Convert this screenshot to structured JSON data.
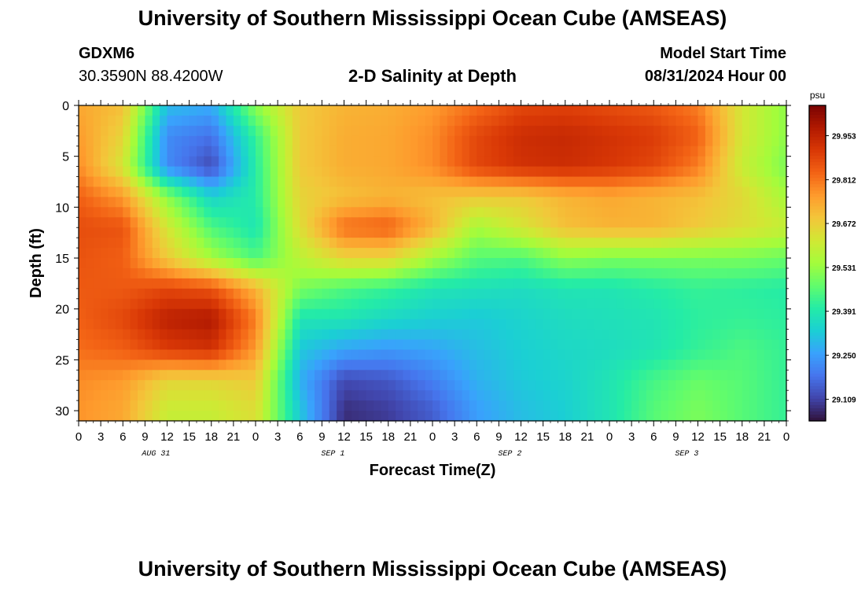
{
  "header": {
    "title": "University of Southern Mississippi Ocean Cube (AMSEAS)",
    "station_id": "GDXM6",
    "station_coords": "30.3590N  88.4200W",
    "subtitle": "2-D Salinity at Depth",
    "model_start_label": "Model Start Time",
    "model_start_value": "08/31/2024 Hour 00"
  },
  "footer": {
    "title": "University of Southern Mississippi Ocean Cube (AMSEAS)"
  },
  "chart_data": {
    "type": "heatmap",
    "title": "2-D Salinity at Depth",
    "xlabel": "Forecast Time(Z)",
    "ylabel": "Depth (ft)",
    "x_ticks": [
      "0",
      "3",
      "6",
      "9",
      "12",
      "15",
      "18",
      "21",
      "0",
      "3",
      "6",
      "9",
      "12",
      "15",
      "18",
      "21",
      "0",
      "3",
      "6",
      "9",
      "12",
      "15",
      "18",
      "21",
      "0",
      "3",
      "6",
      "9",
      "12",
      "15",
      "18",
      "21",
      "0"
    ],
    "date_labels": [
      "AUG 31",
      "SEP 1",
      "SEP 2",
      "SEP 3"
    ],
    "y_ticks": [
      0,
      5,
      10,
      15,
      20,
      25,
      30
    ],
    "y_range": [
      0,
      31
    ],
    "x_range_hours": [
      0,
      96
    ],
    "colorbar": {
      "unit": "psu",
      "ticks": [
        29.953,
        29.812,
        29.672,
        29.531,
        29.391,
        29.25,
        29.109
      ],
      "range": [
        29.04,
        30.05
      ],
      "colors": [
        "#30123b",
        "#4145ab",
        "#4675ed",
        "#39a2fc",
        "#1bcfd4",
        "#24eca6",
        "#61fc6c",
        "#a4fc3b",
        "#d1e834",
        "#f3c63a",
        "#fe9b2d",
        "#f36315",
        "#d93806",
        "#b11901",
        "#7a0402"
      ]
    },
    "depths_ft": [
      0,
      3,
      6,
      9,
      12,
      15,
      18,
      21,
      24,
      27,
      30
    ],
    "hours": [
      0,
      6,
      12,
      18,
      24,
      30,
      36,
      42,
      48,
      54,
      60,
      66,
      72,
      78,
      84,
      90,
      96
    ],
    "salinity_psu": [
      [
        29.74,
        29.7,
        29.3,
        29.27,
        29.52,
        29.68,
        29.72,
        29.73,
        29.76,
        29.82,
        29.88,
        29.89,
        29.87,
        29.85,
        29.8,
        29.62,
        29.52
      ],
      [
        29.76,
        29.66,
        29.22,
        29.18,
        29.42,
        29.68,
        29.73,
        29.74,
        29.78,
        29.88,
        29.93,
        29.94,
        29.92,
        29.9,
        29.84,
        29.62,
        29.52
      ],
      [
        29.78,
        29.62,
        29.22,
        29.12,
        29.4,
        29.68,
        29.73,
        29.74,
        29.78,
        29.88,
        29.92,
        29.93,
        29.91,
        29.88,
        29.8,
        29.6,
        29.5
      ],
      [
        29.84,
        29.76,
        29.52,
        29.34,
        29.4,
        29.66,
        29.7,
        29.72,
        29.7,
        29.68,
        29.68,
        29.72,
        29.74,
        29.72,
        29.7,
        29.65,
        29.55
      ],
      [
        29.87,
        29.86,
        29.62,
        29.45,
        29.38,
        29.64,
        29.82,
        29.84,
        29.72,
        29.55,
        29.62,
        29.7,
        29.72,
        29.72,
        29.68,
        29.64,
        29.6
      ],
      [
        29.86,
        29.84,
        29.68,
        29.55,
        29.45,
        29.58,
        29.66,
        29.66,
        29.55,
        29.46,
        29.45,
        29.52,
        29.5,
        29.5,
        29.5,
        29.5,
        29.48
      ],
      [
        29.85,
        29.85,
        29.88,
        29.86,
        29.72,
        29.5,
        29.45,
        29.42,
        29.38,
        29.37,
        29.36,
        29.38,
        29.38,
        29.4,
        29.42,
        29.41,
        29.4
      ],
      [
        29.84,
        29.88,
        29.96,
        29.98,
        29.8,
        29.38,
        29.38,
        29.35,
        29.33,
        29.32,
        29.34,
        29.36,
        29.37,
        29.38,
        29.41,
        29.42,
        29.41
      ],
      [
        29.82,
        29.84,
        29.9,
        29.92,
        29.76,
        29.32,
        29.26,
        29.24,
        29.26,
        29.3,
        29.33,
        29.35,
        29.36,
        29.38,
        29.42,
        29.45,
        29.42
      ],
      [
        29.78,
        29.76,
        29.66,
        29.66,
        29.68,
        29.28,
        29.12,
        29.14,
        29.2,
        29.28,
        29.32,
        29.34,
        29.38,
        29.44,
        29.48,
        29.46,
        29.42
      ],
      [
        29.77,
        29.74,
        29.6,
        29.6,
        29.64,
        29.32,
        29.08,
        29.1,
        29.15,
        29.25,
        29.3,
        29.33,
        29.38,
        29.46,
        29.5,
        29.46,
        29.42
      ]
    ]
  }
}
